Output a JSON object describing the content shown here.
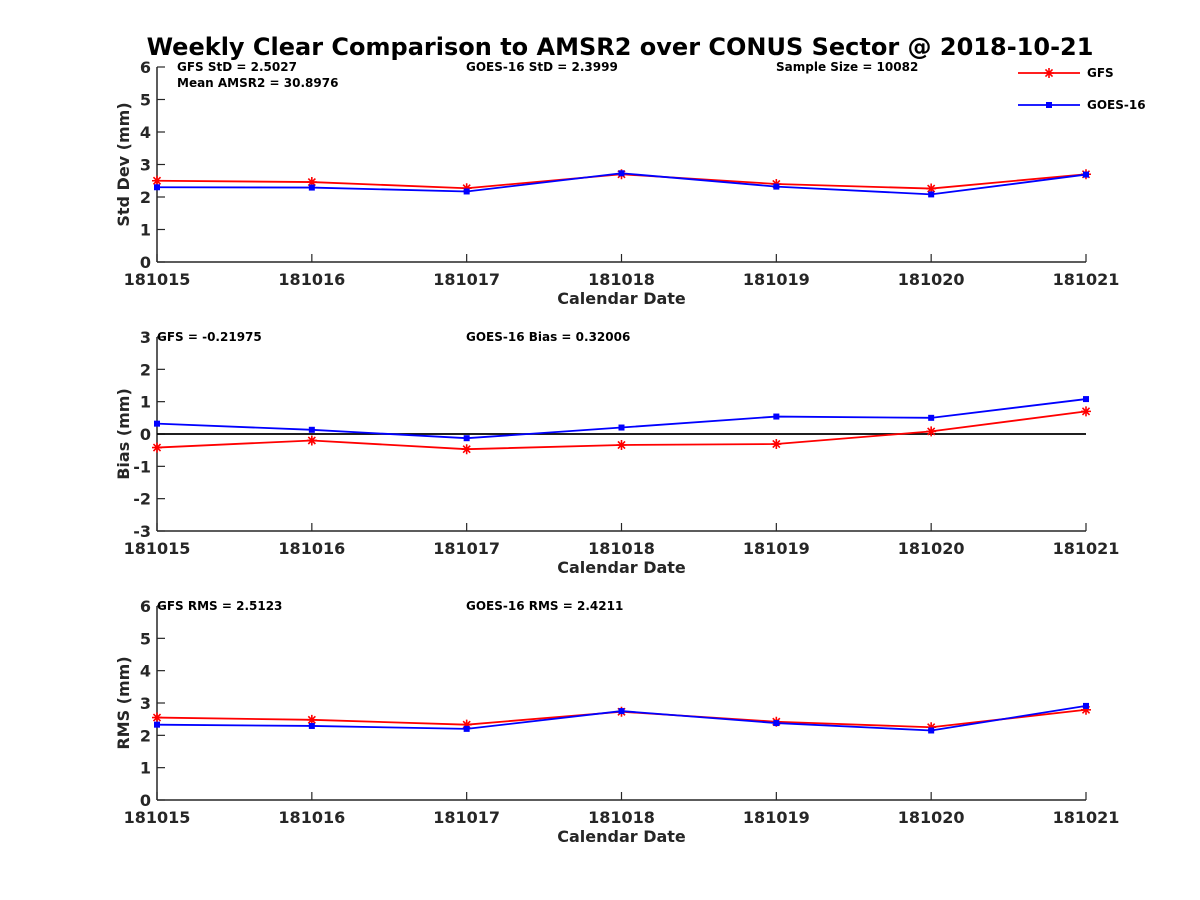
{
  "title": "Weekly Clear Comparison to AMSR2 over CONUS Sector @ 2018-10-21",
  "colors": {
    "gfs": "#ff0000",
    "goes": "#0000ff",
    "zero_line": "#000000",
    "axis": "#262626"
  },
  "legend": {
    "placement": "top-right",
    "items": [
      {
        "label": "GFS",
        "color": "#ff0000",
        "marker": "asterisk-marker"
      },
      {
        "label": "GOES-16",
        "color": "#0000ff",
        "marker": "square-marker"
      }
    ]
  },
  "chart_data": [
    {
      "type": "line",
      "xlabel": "Calendar Date",
      "ylabel": "Std Dev (mm)",
      "ylim": [
        0,
        6
      ],
      "yticks": [
        "0",
        "1",
        "2",
        "3",
        "4",
        "5",
        "6"
      ],
      "categories": [
        "181015",
        "181016",
        "181017",
        "181018",
        "181019",
        "181020",
        "181021"
      ],
      "grid": false,
      "zero_line": false,
      "series": [
        {
          "name": "GFS",
          "values": [
            2.5,
            2.46,
            2.27,
            2.7,
            2.4,
            2.26,
            2.7
          ]
        },
        {
          "name": "GOES-16",
          "values": [
            2.3,
            2.29,
            2.17,
            2.73,
            2.32,
            2.08,
            2.69
          ]
        }
      ],
      "annotations": [
        "GFS StD = 2.5027",
        "Mean AMSR2 = 30.8976",
        "GOES-16 StD = 2.3999",
        "Sample Size = 10082"
      ]
    },
    {
      "type": "line",
      "xlabel": "Calendar Date",
      "ylabel": "Bias (mm)",
      "ylim": [
        -3,
        3
      ],
      "yticks": [
        "-3",
        "-2",
        "-1",
        "0",
        "1",
        "2",
        "3"
      ],
      "categories": [
        "181015",
        "181016",
        "181017",
        "181018",
        "181019",
        "181020",
        "181021"
      ],
      "grid": false,
      "zero_line": true,
      "series": [
        {
          "name": "GFS",
          "values": [
            -0.42,
            -0.2,
            -0.47,
            -0.34,
            -0.31,
            0.08,
            0.7
          ]
        },
        {
          "name": "GOES-16",
          "values": [
            0.32,
            0.13,
            -0.13,
            0.2,
            0.54,
            0.5,
            1.08
          ]
        }
      ],
      "annotations": [
        "GFS = -0.21975",
        "GOES-16 Bias  = 0.32006"
      ]
    },
    {
      "type": "line",
      "xlabel": "Calendar Date",
      "ylabel": "RMS (mm)",
      "ylim": [
        0,
        6
      ],
      "yticks": [
        "0",
        "1",
        "2",
        "3",
        "4",
        "5",
        "6"
      ],
      "categories": [
        "181015",
        "181016",
        "181017",
        "181018",
        "181019",
        "181020",
        "181021"
      ],
      "grid": false,
      "zero_line": false,
      "series": [
        {
          "name": "GFS",
          "values": [
            2.55,
            2.48,
            2.33,
            2.73,
            2.42,
            2.25,
            2.79
          ]
        },
        {
          "name": "GOES-16",
          "values": [
            2.33,
            2.29,
            2.2,
            2.75,
            2.38,
            2.15,
            2.91
          ]
        }
      ],
      "annotations": [
        "GFS RMS = 2.5123",
        "GOES-16 RMS = 2.4211"
      ]
    }
  ]
}
